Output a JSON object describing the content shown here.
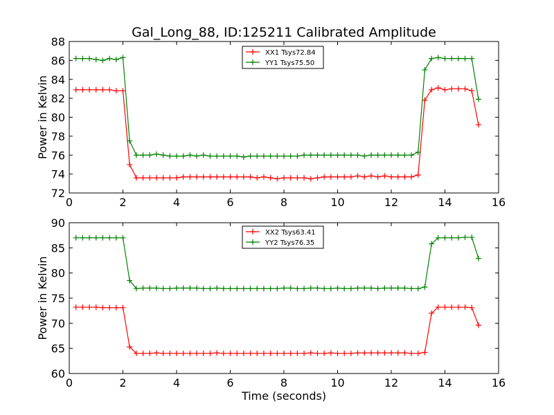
{
  "figure": {
    "title": "Gal_Long_88, ID:125211 Calibrated Amplitude",
    "colors": {
      "red_series": "#ff0000",
      "green_series": "#008000",
      "frame": "#000000"
    }
  },
  "chart_data": [
    {
      "type": "line",
      "title": "Gal_Long_88, ID:125211 Calibrated Amplitude",
      "xlabel": "",
      "ylabel": "Power in Kelvin",
      "xlim": [
        0,
        16
      ],
      "ylim": [
        72,
        88
      ],
      "xticks": [
        0,
        2,
        4,
        6,
        8,
        10,
        12,
        14,
        16
      ],
      "yticks": [
        72,
        74,
        76,
        78,
        80,
        82,
        84,
        86,
        88
      ],
      "grid": false,
      "legend_position": "top-center",
      "x": [
        0.25,
        0.5,
        0.75,
        1.0,
        1.25,
        1.5,
        1.75,
        2.0,
        2.25,
        2.5,
        2.75,
        3.0,
        3.25,
        3.5,
        3.75,
        4.0,
        4.25,
        4.5,
        4.75,
        5.0,
        5.25,
        5.5,
        5.75,
        6.0,
        6.25,
        6.5,
        6.75,
        7.0,
        7.25,
        7.5,
        7.75,
        8.0,
        8.25,
        8.5,
        8.75,
        9.0,
        9.25,
        9.5,
        9.75,
        10.0,
        10.25,
        10.5,
        10.75,
        11.0,
        11.25,
        11.5,
        11.75,
        12.0,
        12.25,
        12.5,
        12.75,
        13.0,
        13.25,
        13.5,
        13.75,
        14.0,
        14.25,
        14.5,
        14.75,
        15.0,
        15.25
      ],
      "series": [
        {
          "name": "XX1 Tsys72.84",
          "color": "#ff0000",
          "marker": "+",
          "values": [
            82.9,
            82.9,
            82.9,
            82.9,
            82.9,
            82.9,
            82.8,
            82.8,
            75.0,
            73.6,
            73.6,
            73.6,
            73.6,
            73.6,
            73.6,
            73.6,
            73.7,
            73.7,
            73.7,
            73.7,
            73.7,
            73.7,
            73.7,
            73.7,
            73.7,
            73.7,
            73.7,
            73.6,
            73.7,
            73.6,
            73.5,
            73.6,
            73.6,
            73.6,
            73.6,
            73.5,
            73.6,
            73.7,
            73.7,
            73.7,
            73.7,
            73.7,
            73.8,
            73.7,
            73.8,
            73.7,
            73.8,
            73.7,
            73.7,
            73.7,
            73.7,
            73.9,
            81.8,
            82.9,
            83.1,
            82.9,
            83.0,
            83.0,
            83.0,
            82.8,
            79.2
          ]
        },
        {
          "name": "YY1 Tsys75.50",
          "color": "#008000",
          "marker": "+",
          "values": [
            86.2,
            86.2,
            86.2,
            86.1,
            86.0,
            86.2,
            86.1,
            86.3,
            77.5,
            76.0,
            76.0,
            76.0,
            76.1,
            76.0,
            75.9,
            75.9,
            75.9,
            76.0,
            75.9,
            76.0,
            75.9,
            75.9,
            75.9,
            75.9,
            75.9,
            75.8,
            75.9,
            75.9,
            75.9,
            75.9,
            75.9,
            75.9,
            75.9,
            75.9,
            76.0,
            76.0,
            76.0,
            76.0,
            76.0,
            76.0,
            76.0,
            76.0,
            76.0,
            75.9,
            76.0,
            76.0,
            76.0,
            76.0,
            76.0,
            76.0,
            76.0,
            76.3,
            85.0,
            86.2,
            86.3,
            86.2,
            86.2,
            86.2,
            86.2,
            86.2,
            81.9
          ]
        }
      ]
    },
    {
      "type": "line",
      "title": "",
      "xlabel": "Time (seconds)",
      "ylabel": "Power in Kelvin",
      "xlim": [
        0,
        16
      ],
      "ylim": [
        60,
        90
      ],
      "xticks": [
        0,
        2,
        4,
        6,
        8,
        10,
        12,
        14,
        16
      ],
      "yticks": [
        60,
        65,
        70,
        75,
        80,
        85,
        90
      ],
      "grid": false,
      "legend_position": "top-center",
      "x": [
        0.25,
        0.5,
        0.75,
        1.0,
        1.25,
        1.5,
        1.75,
        2.0,
        2.25,
        2.5,
        2.75,
        3.0,
        3.25,
        3.5,
        3.75,
        4.0,
        4.25,
        4.5,
        4.75,
        5.0,
        5.25,
        5.5,
        5.75,
        6.0,
        6.25,
        6.5,
        6.75,
        7.0,
        7.25,
        7.5,
        7.75,
        8.0,
        8.25,
        8.5,
        8.75,
        9.0,
        9.25,
        9.5,
        9.75,
        10.0,
        10.25,
        10.5,
        10.75,
        11.0,
        11.25,
        11.5,
        11.75,
        12.0,
        12.25,
        12.5,
        12.75,
        13.0,
        13.25,
        13.5,
        13.75,
        14.0,
        14.25,
        14.5,
        14.75,
        15.0,
        15.25
      ],
      "series": [
        {
          "name": "XX2 Tsys63.41",
          "color": "#ff0000",
          "marker": "+",
          "values": [
            73.2,
            73.2,
            73.2,
            73.2,
            73.1,
            73.1,
            73.1,
            73.1,
            65.3,
            64.0,
            64.0,
            64.0,
            64.1,
            64.0,
            64.0,
            64.0,
            64.0,
            64.0,
            64.0,
            64.0,
            64.0,
            64.1,
            64.0,
            64.0,
            64.0,
            64.0,
            64.0,
            64.0,
            64.0,
            64.0,
            64.0,
            64.0,
            64.0,
            64.0,
            64.0,
            64.1,
            64.0,
            64.0,
            64.1,
            64.0,
            64.0,
            64.0,
            64.1,
            64.1,
            64.1,
            64.1,
            64.1,
            64.1,
            64.1,
            64.1,
            64.0,
            64.0,
            64.2,
            72.0,
            73.2,
            73.2,
            73.2,
            73.2,
            73.2,
            73.1,
            69.6
          ]
        },
        {
          "name": "YY2 Tsys76.35",
          "color": "#008000",
          "marker": "+",
          "values": [
            87.0,
            87.0,
            87.0,
            87.0,
            87.0,
            87.0,
            87.0,
            87.0,
            78.5,
            76.9,
            77.0,
            77.0,
            77.0,
            76.9,
            76.9,
            77.0,
            77.0,
            77.0,
            77.0,
            76.9,
            76.9,
            77.0,
            76.9,
            76.9,
            76.9,
            76.9,
            76.9,
            76.9,
            76.9,
            76.9,
            76.9,
            77.0,
            77.0,
            76.9,
            76.9,
            77.0,
            77.0,
            76.9,
            76.9,
            77.0,
            76.9,
            76.9,
            77.0,
            77.0,
            77.0,
            76.9,
            77.0,
            77.0,
            77.0,
            77.0,
            76.9,
            76.9,
            77.2,
            85.8,
            87.0,
            87.0,
            87.0,
            87.0,
            87.1,
            87.1,
            82.9
          ]
        }
      ]
    }
  ]
}
